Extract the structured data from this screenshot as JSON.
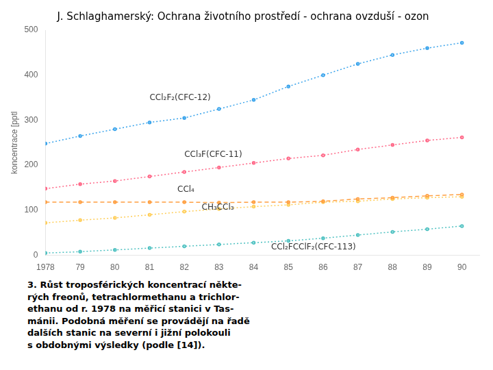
{
  "chart_data": {
    "type": "line",
    "title": "J. Schlaghamerský: Ochrana životního prostředí - ochrana ovzduší - ozon",
    "y_label": "koncentrace [pptl",
    "x": [
      1978,
      1979,
      1980,
      1981,
      1982,
      1983,
      1984,
      1985,
      1986,
      1987,
      1988,
      1989,
      1990
    ],
    "xlim": [
      1978,
      1990.5
    ],
    "xticks": [
      1978,
      {
        "value": 1979,
        "label": "79"
      },
      {
        "value": 1980,
        "label": "80"
      },
      {
        "value": 1981,
        "label": "81"
      },
      {
        "value": 1982,
        "label": "82"
      },
      {
        "value": 1983,
        "label": "83"
      },
      {
        "value": 1984,
        "label": "84"
      },
      {
        "value": 1985,
        "label": "85"
      },
      {
        "value": 1986,
        "label": "86"
      },
      {
        "value": 1987,
        "label": "87"
      },
      {
        "value": 1988,
        "label": "88"
      },
      {
        "value": 1989,
        "label": "89"
      },
      {
        "value": 1990,
        "label": "90"
      }
    ],
    "ylim": [
      0,
      500
    ],
    "yticks": [
      0,
      100,
      200,
      300,
      400,
      500
    ],
    "grid": false,
    "series": [
      {
        "name": "CCl₂F₂(CFC-12)",
        "line_style": "dotted",
        "marker": "point",
        "values": [
          248,
          265,
          280,
          295,
          305,
          325,
          345,
          375,
          400,
          425,
          445,
          460,
          472
        ]
      },
      {
        "name": "CCl₃F(CFC-11)",
        "line_style": "dotted",
        "marker": "point",
        "values": [
          148,
          158,
          165,
          175,
          185,
          195,
          205,
          215,
          222,
          235,
          245,
          255,
          262
        ]
      },
      {
        "name": "CCl₄",
        "line_style": "dashed",
        "marker": "point",
        "values": [
          118,
          118,
          118,
          118,
          118,
          117,
          118,
          118,
          120,
          125,
          128,
          132,
          135
        ]
      },
      {
        "name": "CH₃CCl₃",
        "line_style": "dotted",
        "marker": "point",
        "values": [
          72,
          78,
          83,
          90,
          97,
          103,
          108,
          112,
          118,
          120,
          125,
          128,
          130
        ]
      },
      {
        "name": "CCl₂FCClF₂(CFC-113)",
        "line_style": "dotted",
        "marker": "point",
        "values": [
          5,
          8,
          12,
          16,
          20,
          24,
          28,
          32,
          38,
          45,
          52,
          58,
          65
        ]
      }
    ],
    "annotations": [
      {
        "text": "CCl₂F₂(CFC-12)",
        "x": 1981.0,
        "y": 345
      },
      {
        "text": "CCl₃F(CFC-11)",
        "x": 1982.0,
        "y": 218
      },
      {
        "text": "CCl₄",
        "x": 1981.8,
        "y": 141
      },
      {
        "text": "CH₃CCl₃",
        "x": 1982.5,
        "y": 102
      },
      {
        "text": "CCl₂FCClF₂(CFC-113)",
        "x": 1984.5,
        "y": 13
      }
    ],
    "caption": "3. Růst troposférických koncentrací někte-\nrých freonů, tetrachlormethanu a trichlor-\nethanu od r. 1978 na měřicí stanici v Tas-\nmánii. Podobná měření se provádějí na řadě\ndalších stanic na severní i jižní polokouli\ns obdobnými výsledky (podle [14])."
  }
}
